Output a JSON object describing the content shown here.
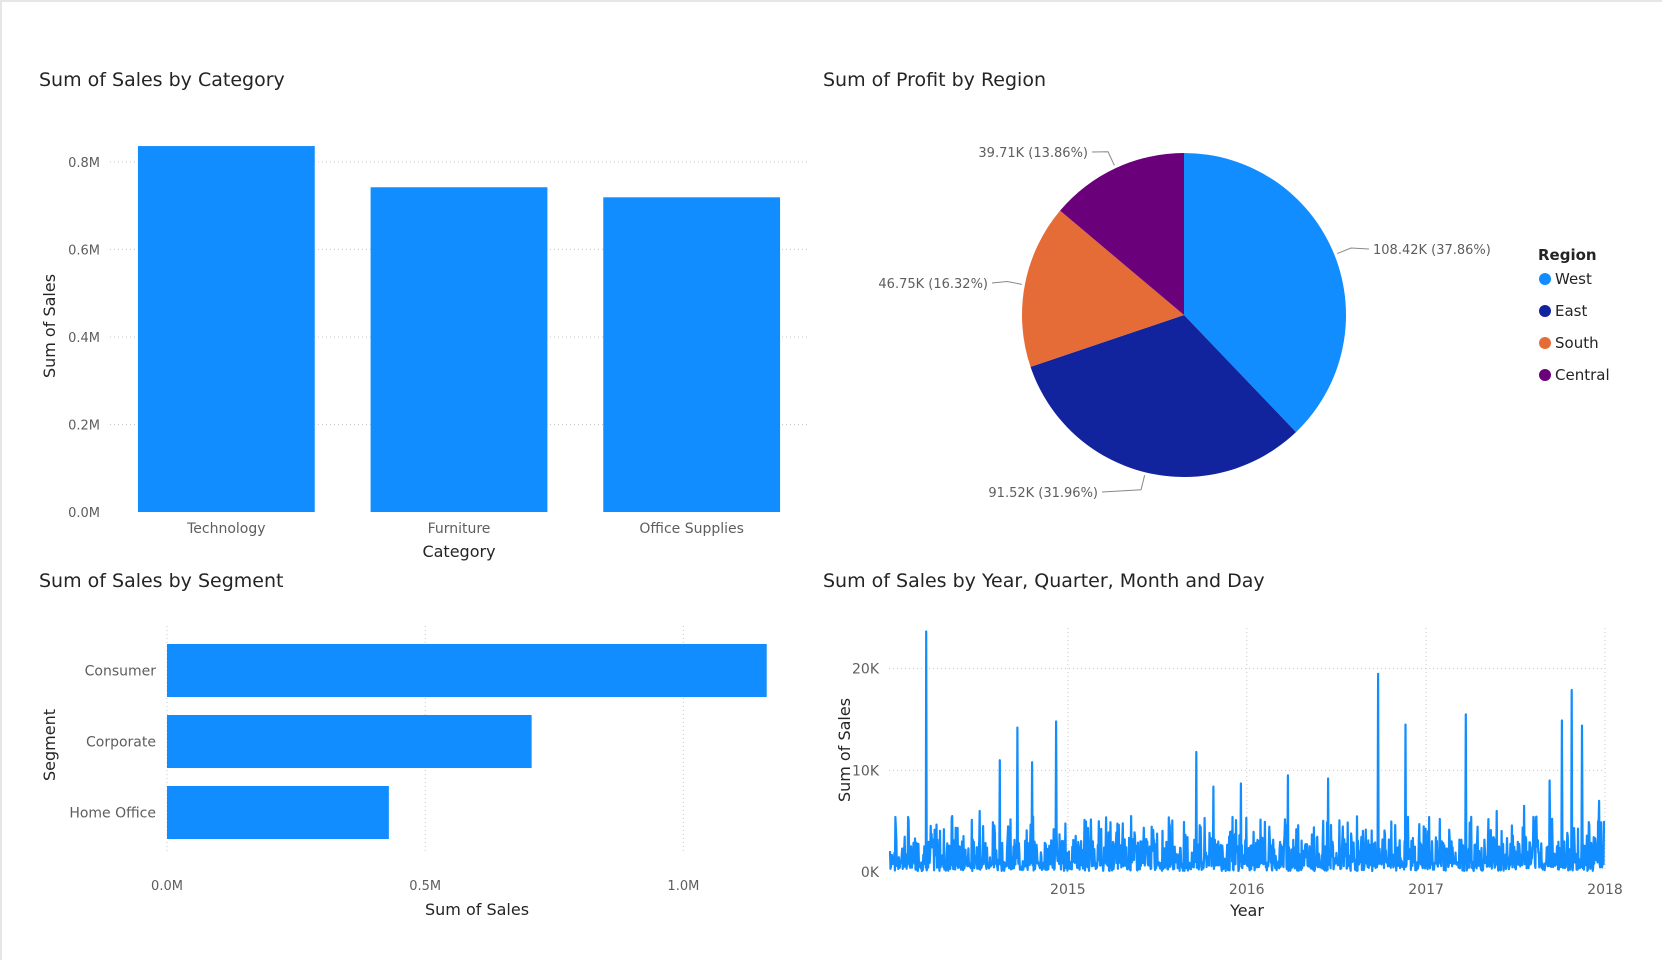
{
  "dashboard": {
    "visuals": [
      {
        "title": "Sum of Sales by Category"
      },
      {
        "title": "Sum of Profit by Region"
      },
      {
        "title": "Sum of Sales by Segment"
      },
      {
        "title": "Sum of Sales by Year, Quarter, Month and Day"
      }
    ]
  },
  "colors": {
    "bar": "#118DFF",
    "grid": "#c8c8c8",
    "text": "#252423",
    "axis_text": "#605E5C"
  },
  "chart_data": [
    {
      "type": "bar",
      "title": "Sum of Sales by Category",
      "xlabel": "Category",
      "ylabel": "Sum of Sales",
      "categories": [
        "Technology",
        "Furniture",
        "Office Supplies"
      ],
      "values": [
        836154,
        741999,
        719047
      ],
      "ylim": [
        0,
        850000
      ],
      "yticks": [
        0,
        200000,
        400000,
        600000,
        800000
      ],
      "ytick_labels": [
        "0.0M",
        "0.2M",
        "0.4M",
        "0.6M",
        "0.8M"
      ],
      "grid": true
    },
    {
      "type": "pie",
      "title": "Sum of Profit by Region",
      "legend_title": "Region",
      "legend_position": "right",
      "slices": [
        {
          "label": "West",
          "value": 108418,
          "data_label": "108.42K (37.86%)",
          "color": "#118DFF"
        },
        {
          "label": "East",
          "value": 91523,
          "data_label": "91.52K (31.96%)",
          "color": "#12239E"
        },
        {
          "label": "South",
          "value": 46750,
          "data_label": "46.75K (16.32%)",
          "color": "#E66C37"
        },
        {
          "label": "Central",
          "value": 39706,
          "data_label": "39.71K (13.86%)",
          "color": "#6B007B"
        }
      ]
    },
    {
      "type": "bar",
      "orientation": "horizontal",
      "title": "Sum of Sales by Segment",
      "xlabel": "Sum of Sales",
      "ylabel": "Segment",
      "categories": [
        "Consumer",
        "Corporate",
        "Home Office"
      ],
      "values": [
        1161401,
        706146,
        429653
      ],
      "xlim": [
        0,
        1160000
      ],
      "xticks": [
        0,
        500000,
        1000000
      ],
      "xtick_labels": [
        "0.0M",
        "0.5M",
        "1.0M"
      ],
      "grid": true
    },
    {
      "type": "line",
      "title": "Sum of Sales by Year, Quarter, Month and Day",
      "xlabel": "Year",
      "ylabel": "Sum of Sales",
      "x_start": "2014-01-03",
      "x_end": "2017-12-30",
      "xlim": [
        "2014-01-01",
        "2018-01-01"
      ],
      "xticks": [
        "2015-01-01",
        "2016-01-01",
        "2017-01-01",
        "2018-01-01"
      ],
      "xtick_labels": [
        "2015",
        "2016",
        "2017",
        "2018"
      ],
      "ylim": [
        0,
        24000
      ],
      "yticks": [
        0,
        10000,
        20000
      ],
      "ytick_labels": [
        "0K",
        "10K",
        "20K"
      ],
      "grid": true,
      "series": [
        {
          "peaks": [
            {
              "date": "2014-01-15",
              "value": 4300
            },
            {
              "date": "2014-03-18",
              "value": 23660
            },
            {
              "date": "2014-05-10",
              "value": 5500
            },
            {
              "date": "2014-07-05",
              "value": 6000
            },
            {
              "date": "2014-08-15",
              "value": 11000
            },
            {
              "date": "2014-09-20",
              "value": 14200
            },
            {
              "date": "2014-10-20",
              "value": 10800
            },
            {
              "date": "2014-12-08",
              "value": 14800
            },
            {
              "date": "2015-03-05",
              "value": 5000
            },
            {
              "date": "2015-05-10",
              "value": 5500
            },
            {
              "date": "2015-09-20",
              "value": 11800
            },
            {
              "date": "2015-10-25",
              "value": 8400
            },
            {
              "date": "2015-12-20",
              "value": 8700
            },
            {
              "date": "2016-03-25",
              "value": 9500
            },
            {
              "date": "2016-06-15",
              "value": 9200
            },
            {
              "date": "2016-09-25",
              "value": 19500
            },
            {
              "date": "2016-11-20",
              "value": 14500
            },
            {
              "date": "2017-03-23",
              "value": 15500
            },
            {
              "date": "2017-05-25",
              "value": 6000
            },
            {
              "date": "2017-07-20",
              "value": 6500
            },
            {
              "date": "2017-09-10",
              "value": 9000
            },
            {
              "date": "2017-10-05",
              "value": 14900
            },
            {
              "date": "2017-10-25",
              "value": 17900
            },
            {
              "date": "2017-11-15",
              "value": 14400
            },
            {
              "date": "2017-12-20",
              "value": 7000
            }
          ]
        }
      ]
    }
  ]
}
